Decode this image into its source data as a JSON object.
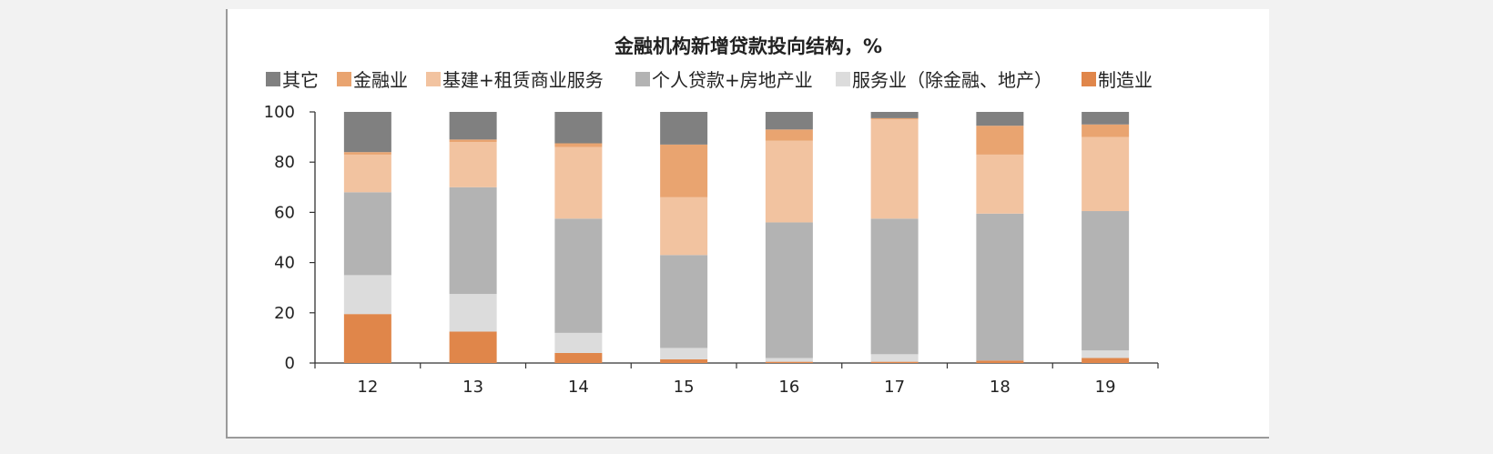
{
  "chart_data": {
    "type": "bar",
    "stacked": true,
    "title": "金融机构新增贷款投向结构，%",
    "categories": [
      "12",
      "13",
      "14",
      "15",
      "16",
      "17",
      "18",
      "19"
    ],
    "ylim": [
      0,
      100
    ],
    "yticks": [
      0,
      20,
      40,
      60,
      80,
      100
    ],
    "legend_position": "top",
    "grid": false,
    "series": [
      {
        "name": "制造业",
        "color": "#e0864a",
        "values": [
          19.5,
          12.5,
          4,
          1.5,
          0.5,
          0.5,
          1,
          2
        ]
      },
      {
        "name": "服务业（除金融、地产）",
        "color": "#dcdcdc",
        "values": [
          15.5,
          15,
          8,
          4.5,
          1.5,
          3,
          0,
          3
        ]
      },
      {
        "name": "个人贷款+房地产业",
        "color": "#b3b3b3",
        "values": [
          33,
          42.5,
          45.5,
          37,
          54,
          54,
          58.5,
          55.5
        ]
      },
      {
        "name": "基建+租赁商业服务",
        "color": "#f2c3a0",
        "values": [
          15,
          18,
          28.5,
          23,
          32.5,
          39.5,
          23.5,
          29.5
        ]
      },
      {
        "name": "金融业",
        "color": "#e9a470",
        "values": [
          1,
          1,
          1.5,
          21,
          4.5,
          0.5,
          11.5,
          5
        ]
      },
      {
        "name": "其它",
        "color": "#808080",
        "values": [
          16,
          11,
          12.5,
          13,
          7,
          2.5,
          5.5,
          5
        ]
      }
    ],
    "legend_order": [
      "其它",
      "金融业",
      "基建+租赁商业服务",
      "个人贷款+房地产业",
      "服务业（除金融、地产）",
      "制造业"
    ]
  }
}
